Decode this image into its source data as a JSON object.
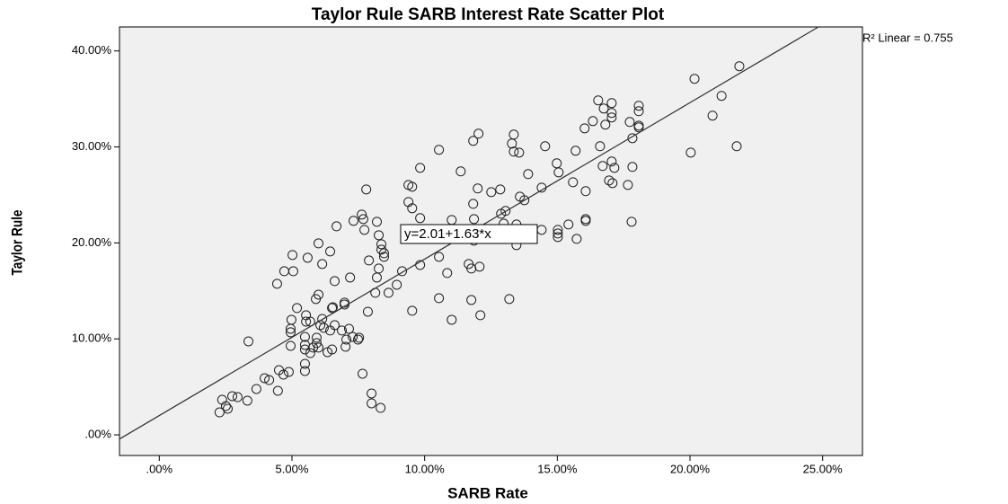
{
  "chart_data": {
    "type": "scatter",
    "title": "Taylor Rule SARB Interest Rate Scatter Plot",
    "x_label": "SARB Rate",
    "y_label": "Taylor Rule",
    "annotation": "y=2.01+1.63*x",
    "r2_label": "R² Linear = 0.755",
    "fit": {
      "intercept": 2.01,
      "slope": 1.63
    },
    "color": "#222222",
    "plot_background": "#f0f0f0",
    "xlim": [
      -1.5,
      26.5
    ],
    "ylim": [
      -2.15,
      42.5
    ],
    "xticks": [
      {
        "value": 0,
        "label": ".00%"
      },
      {
        "value": 5,
        "label": "5.00%"
      },
      {
        "value": 10,
        "label": "10.00%"
      },
      {
        "value": 15,
        "label": "15.00%"
      },
      {
        "value": 20,
        "label": "20.00%"
      },
      {
        "value": 25,
        "label": "25.00%"
      }
    ],
    "yticks": [
      {
        "value": 0,
        "label": ".00%"
      },
      {
        "value": 10,
        "label": "10.00%"
      },
      {
        "value": 20,
        "label": "20.00%"
      },
      {
        "value": 30,
        "label": "30.00%"
      },
      {
        "value": 40,
        "label": "40.00%"
      }
    ],
    "x": [
      2.27,
      2.37,
      2.51,
      2.58,
      2.75,
      2.95,
      3.32,
      3.66,
      3.97,
      4.14,
      4.51,
      4.47,
      4.68,
      4.88,
      3.36,
      4.95,
      4.95,
      4.95,
      4.98,
      5.19,
      5.49,
      5.49,
      5.49,
      5.49,
      5.49,
      5.53,
      5.53,
      5.69,
      5.69,
      5.8,
      5.93,
      5.93,
      6.0,
      6.07,
      6.14,
      6.2,
      6.34,
      6.44,
      6.51,
      6.54,
      6.61,
      6.88,
      6.98,
      7.02,
      7.05,
      7.15,
      7.29,
      7.49,
      7.53,
      7.66,
      7.86,
      8.0,
      8.0,
      8.34,
      8.14,
      8.64,
      8.2,
      7.19,
      6.61,
      6.0,
      5.9,
      6.51,
      6.98,
      4.44,
      4.71,
      5.02,
      5.05,
      5.59,
      6.0,
      6.14,
      6.44,
      6.68,
      7.32,
      7.63,
      7.69,
      7.73,
      7.8,
      8.2,
      8.27,
      8.37,
      8.37,
      8.47,
      8.47,
      8.27,
      7.9,
      8.95,
      9.15,
      9.53,
      9.39,
      9.39,
      9.53,
      9.53,
      9.83,
      9.83,
      9.83,
      10.54,
      10.54,
      10.54,
      10.85,
      11.02,
      11.02,
      11.36,
      11.66,
      11.76,
      11.76,
      11.83,
      11.83,
      11.86,
      11.86,
      12.0,
      12.07,
      12.03,
      12.1,
      12.51,
      12.85,
      12.88,
      12.98,
      13.05,
      13.19,
      13.29,
      13.36,
      13.36,
      13.46,
      13.46,
      13.56,
      13.59,
      13.76,
      13.9,
      14.41,
      14.41,
      14.54,
      14.98,
      15.05,
      15.02,
      15.02,
      15.02,
      15.42,
      15.59,
      15.69,
      15.73,
      16.03,
      16.07,
      16.07,
      16.07,
      16.34,
      16.54,
      16.61,
      16.71,
      16.75,
      16.81,
      16.95,
      17.05,
      17.05,
      17.05,
      17.05,
      17.08,
      17.15,
      17.66,
      17.73,
      17.8,
      17.83,
      17.83,
      18.07,
      18.07,
      18.07,
      18.07,
      20.03,
      20.17,
      20.85,
      21.19,
      21.76,
      21.86
    ],
    "values": [
      2.34,
      3.65,
      3.0,
      2.72,
      4.03,
      3.93,
      3.56,
      4.78,
      5.9,
      5.71,
      6.74,
      4.59,
      6.28,
      6.56,
      9.74,
      9.27,
      10.68,
      11.05,
      11.99,
      13.21,
      7.4,
      6.65,
      8.9,
      9.37,
      10.21,
      12.46,
      11.8,
      11.8,
      8.52,
      9.09,
      9.56,
      10.12,
      9.09,
      11.43,
      12.08,
      11.15,
      8.62,
      10.87,
      8.9,
      13.3,
      11.43,
      10.87,
      13.58,
      9.18,
      9.93,
      11.05,
      10.21,
      9.93,
      10.12,
      6.37,
      12.83,
      4.31,
      3.28,
      2.81,
      14.8,
      14.8,
      16.39,
      16.39,
      16.02,
      14.61,
      14.15,
      13.21,
      13.77,
      15.74,
      17.05,
      18.74,
      17.05,
      18.45,
      19.95,
      17.8,
      19.11,
      21.73,
      22.3,
      22.95,
      22.48,
      21.36,
      25.57,
      22.2,
      20.8,
      19.86,
      19.3,
      18.92,
      18.55,
      17.33,
      18.17,
      15.64,
      17.05,
      12.93,
      24.26,
      26.04,
      23.61,
      25.85,
      17.7,
      22.58,
      27.82,
      29.7,
      18.55,
      14.24,
      16.86,
      11.99,
      22.39,
      27.45,
      17.8,
      17.33,
      14.05,
      24.07,
      30.63,
      20.23,
      22.48,
      25.67,
      17.52,
      31.38,
      12.46,
      25.29,
      25.57,
      23.04,
      22.01,
      23.33,
      14.15,
      30.35,
      31.29,
      29.51,
      19.77,
      21.92,
      29.41,
      24.82,
      24.45,
      27.17,
      21.36,
      25.76,
      30.07,
      28.29,
      27.35,
      21.36,
      20.98,
      20.61,
      21.92,
      26.32,
      29.6,
      20.42,
      31.94,
      25.39,
      22.48,
      22.3,
      32.69,
      34.85,
      30.07,
      28.01,
      34.0,
      32.32,
      26.51,
      34.57,
      33.54,
      33.07,
      28.48,
      26.23,
      27.82,
      26.04,
      32.6,
      22.2,
      27.92,
      30.91,
      34.29,
      33.72,
      32.22,
      32.04,
      29.41,
      37.1,
      33.26,
      35.32,
      30.07,
      38.41
    ]
  }
}
